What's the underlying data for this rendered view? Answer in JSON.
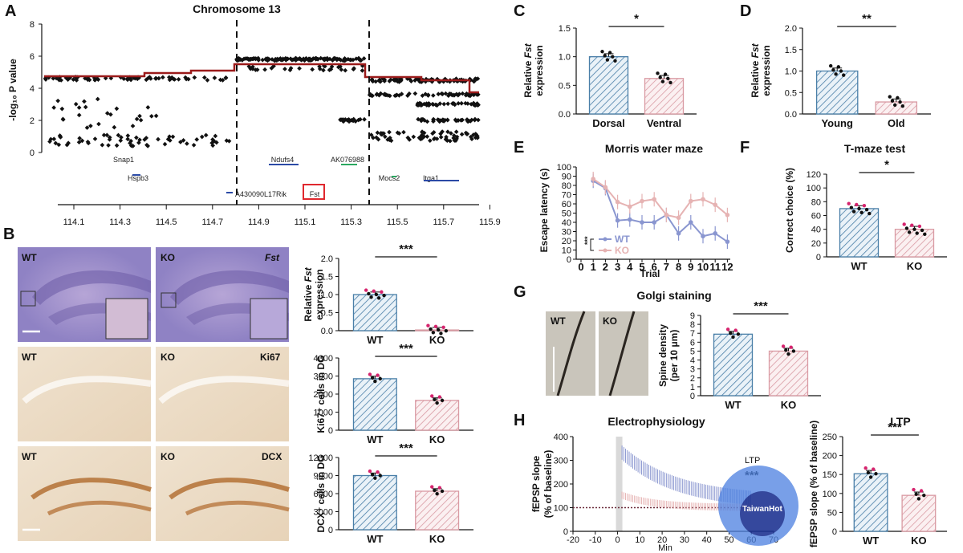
{
  "colors": {
    "wt": "#4a7fa8",
    "ko": "#d99aa3",
    "wt_line": "#8a96d0",
    "ko_line": "#e6b3b3",
    "red": "#9b1b1b",
    "highlight": "#e0282e",
    "dot_pink": "#d6246e"
  },
  "panelA": {
    "label": "A",
    "title": "Chromosome 13",
    "ylabel": "-log₁₀ P value",
    "yticks": [
      "0",
      "2",
      "4",
      "6",
      "8"
    ],
    "xticks": [
      "114.1",
      "114.3",
      "114.5",
      "114.7",
      "114.9",
      "115.1",
      "115.3",
      "115.5",
      "115.7",
      "115.9"
    ],
    "genes": [
      "Snap1",
      "Hspb3",
      "A430090L17Rik",
      "Ndufs4",
      "Fst",
      "AK076988",
      "Mocs2",
      "Itga1"
    ]
  },
  "panelB": {
    "label": "B",
    "micro": [
      "WT",
      "KO",
      "Fst",
      "WT",
      "KO",
      "Ki67",
      "WT",
      "KO",
      "DCX"
    ],
    "charts": [
      {
        "ylabel1": "Relative ",
        "ylabel_it": "Fst",
        "ylabel2": "expression",
        "yticks": [
          "0.0",
          "0.5",
          "1.0",
          "1.5",
          "2.0"
        ],
        "categories": [
          "WT",
          "KO"
        ],
        "values": [
          1.0,
          0.02
        ],
        "sig": "***"
      },
      {
        "ylabel": "Ki67⁺ cells in DG",
        "yticks": [
          "0",
          "1000",
          "2000",
          "3000",
          "4000"
        ],
        "categories": [
          "WT",
          "KO"
        ],
        "values": [
          2850,
          1650
        ],
        "sig": "***"
      },
      {
        "ylabel": "DCX⁺ cells in DG",
        "yticks": [
          "0",
          "3000",
          "6000",
          "9000",
          "12000"
        ],
        "categories": [
          "WT",
          "KO"
        ],
        "values": [
          9000,
          6400
        ],
        "sig": "***"
      }
    ]
  },
  "panelC": {
    "label": "C",
    "ylabel1": "Relative ",
    "ylabel_it": "Fst",
    "ylabel2": "expression",
    "yticks": [
      "0.0",
      "0.5",
      "1.0",
      "1.5"
    ],
    "categories": [
      "Dorsal",
      "Ventral"
    ],
    "values": [
      1.0,
      0.62
    ],
    "sig": "*"
  },
  "panelD": {
    "label": "D",
    "ylabel1": "Relative ",
    "ylabel_it": "Fst",
    "ylabel2": "expression",
    "yticks": [
      "0.0",
      "0.5",
      "1.0",
      "1.5",
      "2.0"
    ],
    "categories": [
      "Young",
      "Old"
    ],
    "values": [
      1.0,
      0.28
    ],
    "sig": "**"
  },
  "panelE": {
    "label": "E",
    "title": "Morris water maze",
    "ylabel": "Escape latency (s)",
    "xlabel": "Trial",
    "yticks": [
      "0",
      "10",
      "20",
      "30",
      "40",
      "50",
      "60",
      "70",
      "80",
      "90",
      "100"
    ],
    "xticks": [
      "0",
      "1",
      "2",
      "3",
      "4",
      "5",
      "6",
      "7",
      "8",
      "9",
      "10",
      "11",
      "12"
    ],
    "legend": [
      "WT",
      "KO"
    ],
    "sig": "***"
  },
  "panelF": {
    "label": "F",
    "title": "T-maze test",
    "ylabel": "Correct choice (%)",
    "yticks": [
      "0",
      "20",
      "40",
      "60",
      "80",
      "100",
      "120"
    ],
    "categories": [
      "WT",
      "KO"
    ],
    "values": [
      70,
      40
    ],
    "sig": "*"
  },
  "panelG": {
    "label": "G",
    "title": "Golgi staining",
    "ylabel1": "Spine density",
    "ylabel2": "(per 10 μm)",
    "yticks": [
      "0",
      "1",
      "2",
      "3",
      "4",
      "5",
      "6",
      "7",
      "8",
      "9"
    ],
    "categories": [
      "WT",
      "KO"
    ],
    "values": [
      6.9,
      5.0
    ],
    "sig": "***",
    "micro": [
      "WT",
      "KO"
    ]
  },
  "panelH": {
    "label": "H",
    "title": "Electrophysiology",
    "ylabel1": "fEPSP slope",
    "ylabel2": "(% of baseline)",
    "xlabel": "Min",
    "yticks": [
      "0",
      "100",
      "200",
      "300",
      "400"
    ],
    "xticks": [
      "-20",
      "-10",
      "0",
      "10",
      "20",
      "30",
      "40",
      "50",
      "60",
      "70"
    ],
    "ltp_label": "LTP",
    "ltp_sig": "***",
    "bar_title": "LTP",
    "bar_ylabel": "fEPSP slope (% of baseline)",
    "bar_yticks": [
      "0",
      "50",
      "100",
      "150",
      "200",
      "250"
    ],
    "categories": [
      "WT",
      "KO"
    ],
    "values": [
      152,
      95
    ],
    "sig": "***"
  },
  "watermark": "TaiwanHot",
  "chart_data": [
    {
      "type": "scatter",
      "title": "Chromosome 13",
      "ylabel": "-log₁₀ P value",
      "xlim": [
        114.0,
        116.0
      ],
      "ylim": [
        0,
        8
      ]
    },
    {
      "type": "bar",
      "categories": [
        "WT",
        "KO"
      ],
      "values": [
        1.0,
        0.02
      ],
      "ylabel": "Relative Fst expression",
      "ylim": [
        0,
        2
      ]
    },
    {
      "type": "bar",
      "categories": [
        "WT",
        "KO"
      ],
      "values": [
        2850,
        1650
      ],
      "ylabel": "Ki67⁺ cells in DG",
      "ylim": [
        0,
        4000
      ]
    },
    {
      "type": "bar",
      "categories": [
        "WT",
        "KO"
      ],
      "values": [
        9000,
        6400
      ],
      "ylabel": "DCX⁺ cells in DG",
      "ylim": [
        0,
        12000
      ]
    },
    {
      "type": "bar",
      "categories": [
        "Dorsal",
        "Ventral"
      ],
      "values": [
        1.0,
        0.62
      ],
      "ylabel": "Relative Fst expression",
      "ylim": [
        0,
        1.5
      ]
    },
    {
      "type": "bar",
      "categories": [
        "Young",
        "Old"
      ],
      "values": [
        1.0,
        0.28
      ],
      "ylabel": "Relative Fst expression",
      "ylim": [
        0,
        2
      ]
    },
    {
      "type": "line",
      "title": "Morris water maze",
      "xlabel": "Trial",
      "ylabel": "Escape latency (s)",
      "x": [
        1,
        2,
        3,
        4,
        5,
        6,
        7,
        8,
        9,
        10,
        11,
        12
      ],
      "series": [
        {
          "name": "WT",
          "values": [
            85,
            77,
            42,
            43,
            40,
            40,
            48,
            28,
            40,
            25,
            28,
            19
          ]
        },
        {
          "name": "KO",
          "values": [
            87,
            78,
            62,
            57,
            63,
            65,
            48,
            45,
            63,
            65,
            59,
            48
          ]
        }
      ],
      "ylim": [
        0,
        100
      ]
    },
    {
      "type": "bar",
      "title": "T-maze test",
      "categories": [
        "WT",
        "KO"
      ],
      "values": [
        70,
        40
      ],
      "ylabel": "Correct choice (%)",
      "ylim": [
        0,
        120
      ]
    },
    {
      "type": "bar",
      "title": "Golgi staining",
      "categories": [
        "WT",
        "KO"
      ],
      "values": [
        6.9,
        5.0
      ],
      "ylabel": "Spine density (per 10 μm)",
      "ylim": [
        0,
        9
      ]
    },
    {
      "type": "bar",
      "title": "LTP",
      "categories": [
        "WT",
        "KO"
      ],
      "values": [
        152,
        95
      ],
      "ylabel": "fEPSP slope (% of baseline)",
      "ylim": [
        0,
        250
      ]
    }
  ]
}
